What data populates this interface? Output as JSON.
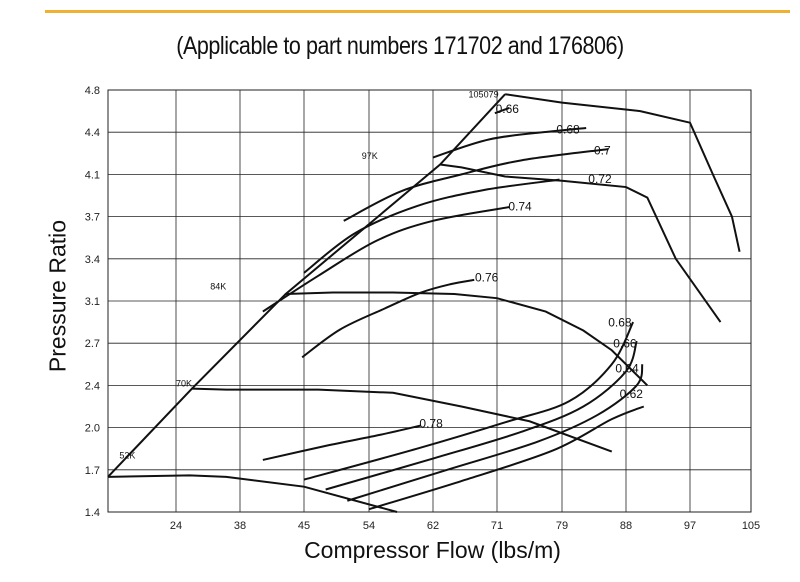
{
  "colors": {
    "accent_line": "#f0b030",
    "curve": "#111111",
    "grid": "#222222"
  },
  "chart_data": {
    "type": "line",
    "subtitle": "(Applicable to part numbers 171702 and 176806)",
    "xlabel": "Compressor Flow (lbs/m)",
    "ylabel": "Pressure Ratio",
    "x_ticks": [
      "24",
      "38",
      "45",
      "54",
      "62",
      "71",
      "79",
      "88",
      "97",
      "105"
    ],
    "y_ticks": [
      "1.4",
      "1.7",
      "2.0",
      "2.4",
      "2.7",
      "3.1",
      "3.4",
      "3.7",
      "4.1",
      "4.4",
      "4.8"
    ],
    "xlim": [
      18,
      105
    ],
    "ylim": [
      1.4,
      4.8
    ],
    "grid": true,
    "speed_lines": [
      {
        "name": "52K",
        "points": [
          [
            18,
            1.65
          ],
          [
            27,
            1.66
          ],
          [
            35,
            1.65
          ],
          [
            45,
            1.58
          ],
          [
            57.5,
            1.4
          ]
        ]
      },
      {
        "name": "70K",
        "points": [
          [
            27.5,
            2.37
          ],
          [
            35,
            2.36
          ],
          [
            47,
            2.36
          ],
          [
            57,
            2.33
          ],
          [
            66,
            2.2
          ],
          [
            75,
            2.06
          ],
          [
            86,
            1.83
          ]
        ]
      },
      {
        "name": "84K",
        "points": [
          [
            43,
            3.15
          ],
          [
            49,
            3.16
          ],
          [
            57,
            3.16
          ],
          [
            65,
            3.15
          ],
          [
            71,
            3.12
          ],
          [
            77,
            3.0
          ],
          [
            82,
            2.82
          ],
          [
            86,
            2.65
          ],
          [
            91,
            2.4
          ]
        ]
      },
      {
        "name": "97K",
        "points": [
          [
            63,
            4.17
          ],
          [
            66,
            4.15
          ],
          [
            72,
            4.08
          ],
          [
            79,
            4.04
          ],
          [
            88,
            3.98
          ],
          [
            91,
            3.88
          ],
          [
            95,
            3.4
          ],
          [
            101,
            2.9
          ]
        ]
      },
      {
        "name": "105079",
        "points": [
          [
            72,
            4.76
          ],
          [
            79,
            4.68
          ],
          [
            90,
            4.6
          ],
          [
            97,
            4.49
          ],
          [
            100,
            4.1
          ],
          [
            102.5,
            3.7
          ],
          [
            103.5,
            3.45
          ]
        ]
      }
    ],
    "efficiency_contours": [
      {
        "name": "0.66",
        "points": [
          [
            70.7,
            4.58
          ],
          [
            72.5,
            4.63
          ]
        ]
      },
      {
        "name": "0.68",
        "points": [
          [
            62,
            4.22
          ],
          [
            70,
            4.35
          ],
          [
            78,
            4.41
          ],
          [
            82.4,
            4.44
          ]
        ]
      },
      {
        "name": "0.7",
        "points": [
          [
            50.5,
            3.67
          ],
          [
            58,
            3.94
          ],
          [
            66,
            4.1
          ],
          [
            74,
            4.2
          ],
          [
            85.5,
            4.28
          ]
        ]
      },
      {
        "name": "0.72",
        "points": [
          [
            45,
            3.3
          ],
          [
            52,
            3.58
          ],
          [
            60,
            3.8
          ],
          [
            69,
            3.95
          ],
          [
            78.7,
            4.05
          ]
        ]
      },
      {
        "name": "0.74",
        "points": [
          [
            40.5,
            3.0
          ],
          [
            47,
            3.28
          ],
          [
            55,
            3.53
          ],
          [
            62,
            3.67
          ],
          [
            72.5,
            3.79
          ]
        ]
      },
      {
        "name": "0.76",
        "points": [
          [
            44.8,
            2.6
          ],
          [
            50,
            2.83
          ],
          [
            56,
            3.03
          ],
          [
            60.5,
            3.16
          ],
          [
            64.5,
            3.22
          ],
          [
            67.8,
            3.25
          ]
        ]
      },
      {
        "name": "0.78",
        "points": [
          [
            40.5,
            1.77
          ],
          [
            48,
            1.87
          ],
          [
            55.5,
            1.95
          ],
          [
            60.5,
            2.02
          ]
        ]
      },
      {
        "name": "0.68",
        "points": [
          [
            45,
            1.63
          ],
          [
            60,
            1.85
          ],
          [
            72,
            2.05
          ],
          [
            80,
            2.25
          ],
          [
            86,
            2.55
          ],
          [
            89,
            2.9
          ]
        ]
      },
      {
        "name": "0.66",
        "points": [
          [
            48,
            1.56
          ],
          [
            62,
            1.78
          ],
          [
            74,
            1.97
          ],
          [
            82,
            2.2
          ],
          [
            88,
            2.5
          ],
          [
            89.5,
            2.72
          ]
        ]
      },
      {
        "name": "0.64",
        "points": [
          [
            51,
            1.48
          ],
          [
            64,
            1.7
          ],
          [
            76,
            1.9
          ],
          [
            84,
            2.12
          ],
          [
            89.5,
            2.4
          ],
          [
            90.3,
            2.55
          ]
        ]
      },
      {
        "name": "0.62",
        "points": [
          [
            54,
            1.42
          ],
          [
            66,
            1.62
          ],
          [
            78,
            1.84
          ],
          [
            86,
            2.08
          ],
          [
            90.5,
            2.2
          ]
        ]
      }
    ],
    "annotations": {
      "speed_labels": [
        "52K",
        "70K",
        "84K",
        "97K",
        "105079"
      ],
      "efficiency_labels": [
        "0.66",
        "0.68",
        "0.7",
        "0.72",
        "0.74",
        "0.76",
        "0.78",
        "0.68",
        "0.66",
        "0.64",
        "0.62"
      ]
    }
  }
}
